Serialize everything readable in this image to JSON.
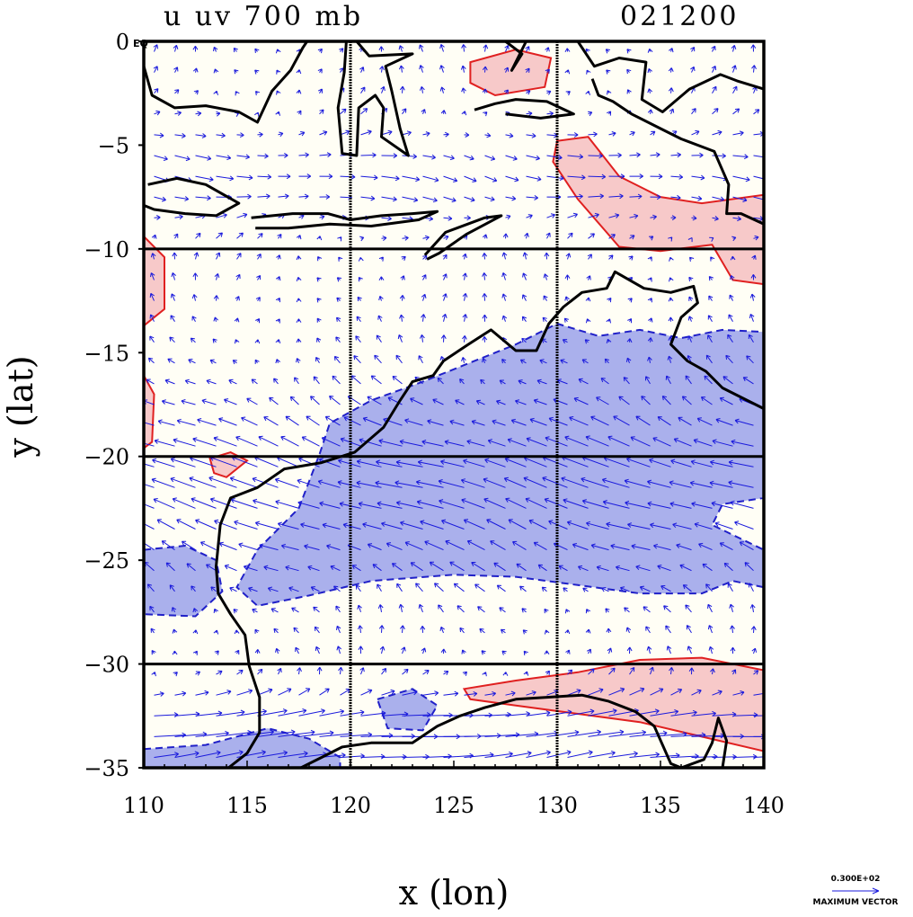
{
  "chart_data": {
    "type": "vector-contour-map",
    "title_left": "u uv 700 mb",
    "title_right": "021200",
    "xlabel": "x (lon)",
    "ylabel": "y (lat)",
    "xlim": [
      110,
      140
    ],
    "ylim": [
      -35,
      0
    ],
    "x_ticks": [
      110,
      115,
      120,
      125,
      130,
      135,
      140
    ],
    "x_tick_labels": [
      "110",
      "115",
      "120",
      "125",
      "130",
      "135",
      "140"
    ],
    "y_ticks": [
      0,
      -5,
      -10,
      -15,
      -20,
      -25,
      -30,
      -35
    ],
    "y_tick_labels": [
      "0",
      "−5",
      "−10",
      "−15",
      "−20",
      "−25",
      "−30",
      "−35"
    ],
    "equator_tag": "EQ",
    "grid_lines": {
      "lon": [
        120,
        130
      ],
      "lat": [
        -10,
        -20,
        -30
      ]
    },
    "colors": {
      "positive_fill": "#f7c9c9",
      "positive_line": "#e02020",
      "negative_fill": "#aab0ec",
      "negative_line": "#2020c8",
      "background": "#fffef5",
      "vector": "#1a1adc",
      "coast": "#000000"
    },
    "positive_regions": [
      {
        "name": "south-coast-westerlies",
        "lonlat": [
          [
            125.5,
            -31.2
          ],
          [
            128,
            -30.8
          ],
          [
            131,
            -30.4
          ],
          [
            134,
            -29.8
          ],
          [
            137,
            -29.7
          ],
          [
            140,
            -30.3
          ],
          [
            140,
            -34.2
          ],
          [
            137,
            -33.5
          ],
          [
            134,
            -32.8
          ],
          [
            131,
            -32.4
          ],
          [
            128,
            -32
          ],
          [
            125.8,
            -31.7
          ]
        ]
      },
      {
        "name": "timor-sea-westerlies",
        "lonlat": [
          [
            130,
            -4.8
          ],
          [
            131.5,
            -4.6
          ],
          [
            133,
            -6.5
          ],
          [
            135,
            -7.5
          ],
          [
            137,
            -7.8
          ],
          [
            140,
            -7.4
          ],
          [
            140,
            -11.7
          ],
          [
            138.5,
            -11.5
          ],
          [
            137.5,
            -9.8
          ],
          [
            135,
            -10.1
          ],
          [
            133,
            -9.9
          ],
          [
            131,
            -7.6
          ],
          [
            129.8,
            -5.8
          ]
        ]
      },
      {
        "name": "banda-sea-westerlies",
        "lonlat": [
          [
            125.8,
            -1
          ],
          [
            128,
            -0.4
          ],
          [
            129.7,
            -0.8
          ],
          [
            129.4,
            -2.2
          ],
          [
            127,
            -2.6
          ],
          [
            125.8,
            -2
          ]
        ]
      },
      {
        "name": "west-edge-patch",
        "lonlat": [
          [
            110,
            -9.4
          ],
          [
            111,
            -10.4
          ],
          [
            111,
            -12.9
          ],
          [
            110,
            -13.7
          ]
        ]
      },
      {
        "name": "west-edge-patch-2",
        "lonlat": [
          [
            110,
            -16.1
          ],
          [
            110.5,
            -17
          ],
          [
            110.4,
            -19.3
          ],
          [
            110,
            -19.6
          ]
        ]
      },
      {
        "name": "north-west-shelf-patch",
        "lonlat": [
          [
            113.2,
            -20.1
          ],
          [
            114.2,
            -19.8
          ],
          [
            115,
            -20.2
          ],
          [
            114,
            -21
          ],
          [
            113.4,
            -20.8
          ]
        ]
      }
    ],
    "negative_regions": [
      {
        "name": "subtropical-easterlies",
        "lonlat": [
          [
            115.5,
            -24.5
          ],
          [
            117.5,
            -22.5
          ],
          [
            118.5,
            -19.9
          ],
          [
            119,
            -18.4
          ],
          [
            121,
            -17.3
          ],
          [
            123.5,
            -16.4
          ],
          [
            125.5,
            -15.6
          ],
          [
            128,
            -14.6
          ],
          [
            130,
            -13.6
          ],
          [
            132,
            -14.2
          ],
          [
            134,
            -13.9
          ],
          [
            136,
            -14.3
          ],
          [
            138,
            -13.9
          ],
          [
            140,
            -14
          ],
          [
            140,
            -22
          ],
          [
            138,
            -22.3
          ],
          [
            137.5,
            -23.3
          ],
          [
            140,
            -24.5
          ],
          [
            140,
            -26.3
          ],
          [
            138.5,
            -26
          ],
          [
            137,
            -26.6
          ],
          [
            134,
            -26.6
          ],
          [
            131,
            -26.2
          ],
          [
            128,
            -25.8
          ],
          [
            125,
            -25.7
          ],
          [
            121,
            -26
          ],
          [
            118,
            -26.7
          ],
          [
            115.5,
            -27.2
          ],
          [
            114.5,
            -26.3
          ]
        ]
      },
      {
        "name": "west-coast-easterlies",
        "lonlat": [
          [
            110,
            -24.5
          ],
          [
            112,
            -24.3
          ],
          [
            113.5,
            -25
          ],
          [
            113.8,
            -26.5
          ],
          [
            112.5,
            -27.7
          ],
          [
            110,
            -27.6
          ]
        ]
      },
      {
        "name": "gulf-easterlies",
        "lonlat": [
          [
            121.3,
            -31.7
          ],
          [
            123,
            -31.2
          ],
          [
            124.2,
            -32
          ],
          [
            123.5,
            -33.2
          ],
          [
            121.8,
            -33.1
          ]
        ]
      },
      {
        "name": "south-west-easterlies",
        "lonlat": [
          [
            110,
            -34.1
          ],
          [
            113,
            -33.9
          ],
          [
            116,
            -33.1
          ],
          [
            118,
            -33.6
          ],
          [
            119.5,
            -34.5
          ],
          [
            119.5,
            -35
          ],
          [
            110,
            -35
          ]
        ]
      }
    ],
    "coastlines": [
      {
        "name": "australia-mainland",
        "lonlat": [
          [
            114.1,
            -35
          ],
          [
            115,
            -34.3
          ],
          [
            115.6,
            -33.3
          ],
          [
            115.6,
            -31.6
          ],
          [
            115.1,
            -30.1
          ],
          [
            114.9,
            -28.6
          ],
          [
            114.2,
            -27.6
          ],
          [
            113.6,
            -26.6
          ],
          [
            113.5,
            -25.3
          ],
          [
            113.7,
            -23.3
          ],
          [
            114.2,
            -22
          ],
          [
            115.5,
            -21.5
          ],
          [
            116.8,
            -20.6
          ],
          [
            118.6,
            -20.3
          ],
          [
            120.2,
            -19.8
          ],
          [
            121.6,
            -18.6
          ],
          [
            122.4,
            -17.3
          ],
          [
            123,
            -16.4
          ],
          [
            124,
            -16.1
          ],
          [
            124.5,
            -15.4
          ],
          [
            125.7,
            -14.6
          ],
          [
            126.8,
            -13.9
          ],
          [
            128,
            -14.9
          ],
          [
            129,
            -14.9
          ],
          [
            129.6,
            -13.6
          ],
          [
            130.3,
            -12.8
          ],
          [
            131.2,
            -12.1
          ],
          [
            132.4,
            -11.9
          ],
          [
            132.8,
            -11.1
          ],
          [
            134.2,
            -11.9
          ],
          [
            135.5,
            -12.1
          ],
          [
            136.6,
            -11.8
          ],
          [
            136.8,
            -12.6
          ],
          [
            136,
            -13.3
          ],
          [
            135.5,
            -14.6
          ],
          [
            136.3,
            -15.4
          ],
          [
            137.2,
            -15.9
          ],
          [
            138,
            -16.7
          ],
          [
            139.2,
            -17.3
          ],
          [
            140,
            -17.7
          ]
        ]
      },
      {
        "name": "australia-south-coast",
        "lonlat": [
          [
            117.6,
            -35
          ],
          [
            118.6,
            -34.5
          ],
          [
            119.6,
            -34
          ],
          [
            121,
            -33.8
          ],
          [
            123,
            -33.8
          ],
          [
            124.2,
            -33
          ],
          [
            125.3,
            -32.5
          ],
          [
            126.5,
            -32.1
          ],
          [
            128,
            -31.7
          ],
          [
            129.6,
            -31.6
          ],
          [
            131.2,
            -31.5
          ],
          [
            132.5,
            -31.8
          ],
          [
            133.8,
            -32.3
          ],
          [
            134.7,
            -33
          ],
          [
            135.5,
            -34.8
          ],
          [
            136,
            -35
          ],
          [
            137.1,
            -34.6
          ],
          [
            137.5,
            -33.8
          ],
          [
            137.8,
            -32.6
          ],
          [
            138.2,
            -33.7
          ],
          [
            138,
            -35
          ]
        ]
      },
      {
        "name": "borneo-coast",
        "lonlat": [
          [
            110,
            -1.2
          ],
          [
            110.4,
            -2.6
          ],
          [
            111.5,
            -3.2
          ],
          [
            113,
            -3.1
          ],
          [
            114.6,
            -3.4
          ],
          [
            115.5,
            -3.9
          ],
          [
            116.2,
            -2.4
          ],
          [
            117.1,
            -1.4
          ],
          [
            117.7,
            -0.3
          ],
          [
            117.9,
            0
          ]
        ]
      },
      {
        "name": "sulawesi",
        "lonlat": [
          [
            119.8,
            0
          ],
          [
            119.7,
            -1.5
          ],
          [
            119.4,
            -3.2
          ],
          [
            119.6,
            -5.4
          ],
          [
            120.3,
            -5.5
          ],
          [
            120.4,
            -3.2
          ],
          [
            121.2,
            -2.6
          ],
          [
            121.6,
            -3.2
          ],
          [
            121.5,
            -4.6
          ],
          [
            122.8,
            -5.5
          ],
          [
            122.4,
            -4.2
          ],
          [
            122,
            -2.4
          ],
          [
            121.7,
            -1.2
          ],
          [
            123,
            -0.6
          ],
          [
            120.9,
            -0.7
          ],
          [
            120.3,
            0
          ]
        ]
      },
      {
        "name": "java",
        "lonlat": [
          [
            110.2,
            -6.9
          ],
          [
            111.6,
            -6.6
          ],
          [
            113,
            -6.9
          ],
          [
            114.6,
            -7.8
          ],
          [
            113.5,
            -8.4
          ],
          [
            112,
            -8.3
          ],
          [
            110.5,
            -8.1
          ],
          [
            110,
            -7.9
          ]
        ]
      },
      {
        "name": "lesser-sunda",
        "lonlat": [
          [
            115.2,
            -8.5
          ],
          [
            117.2,
            -8.3
          ],
          [
            118.9,
            -8.3
          ],
          [
            120,
            -8.6
          ],
          [
            121.5,
            -8.4
          ],
          [
            123,
            -8.3
          ],
          [
            124.2,
            -8.2
          ],
          [
            123.3,
            -8.6
          ],
          [
            121,
            -8.9
          ],
          [
            119,
            -8.8
          ],
          [
            117,
            -9
          ],
          [
            115.4,
            -9
          ]
        ]
      },
      {
        "name": "timor",
        "lonlat": [
          [
            123.6,
            -10.3
          ],
          [
            124.6,
            -9.2
          ],
          [
            126.5,
            -8.5
          ],
          [
            127.3,
            -8.4
          ],
          [
            125.6,
            -9.3
          ],
          [
            124.3,
            -10.2
          ],
          [
            123.7,
            -10.5
          ]
        ]
      },
      {
        "name": "seram-buru",
        "lonlat": [
          [
            126,
            -3.3
          ],
          [
            127,
            -3
          ],
          [
            128,
            -2.8
          ],
          [
            129.5,
            -2.9
          ],
          [
            130.8,
            -3.5
          ],
          [
            129.2,
            -3.7
          ],
          [
            127.5,
            -3.5
          ]
        ]
      },
      {
        "name": "new-guinea",
        "lonlat": [
          [
            131,
            0
          ],
          [
            131.8,
            -1.2
          ],
          [
            133,
            -0.8
          ],
          [
            134.3,
            -1
          ],
          [
            134.1,
            -2.8
          ],
          [
            135.1,
            -3.4
          ],
          [
            136.4,
            -2.3
          ],
          [
            137.9,
            -1.6
          ],
          [
            138.7,
            -1.9
          ],
          [
            140,
            -2.3
          ],
          [
            140,
            -8.8
          ],
          [
            138.9,
            -8.3
          ],
          [
            138.2,
            -8.3
          ],
          [
            138.3,
            -6.9
          ],
          [
            137.6,
            -5.3
          ],
          [
            136,
            -4.7
          ],
          [
            135,
            -4.2
          ],
          [
            133.6,
            -3.5
          ],
          [
            132.7,
            -2.9
          ],
          [
            132,
            -2.6
          ],
          [
            131.7,
            -1.8
          ]
        ]
      },
      {
        "name": "halmahera",
        "lonlat": [
          [
            127.5,
            0
          ],
          [
            128.3,
            -0.6
          ],
          [
            127.8,
            -1.4
          ],
          [
            128.5,
            0
          ]
        ]
      }
    ],
    "vector_field": {
      "grid_lon_step": 1.0,
      "grid_lat_step": 1.0,
      "background_u": 0.0,
      "background_v": 1.0,
      "jets": [
        {
          "name": "subtropical-easterly-jet",
          "center_lat": -21.5,
          "width_deg": 4.5,
          "u": -5.0,
          "v": 0.5
        },
        {
          "name": "southern-westerly-jet",
          "center_lat": -33.5,
          "width_deg": 2.0,
          "u": 7.0,
          "v": -0.5
        },
        {
          "name": "timor-westerlies",
          "center_lat": -6.5,
          "width_deg": 2.5,
          "u": 3.0,
          "v": -1.5
        }
      ]
    },
    "legend": {
      "magnitude_label": "0.300E+02",
      "caption": "MAXIMUM VECTOR"
    }
  }
}
